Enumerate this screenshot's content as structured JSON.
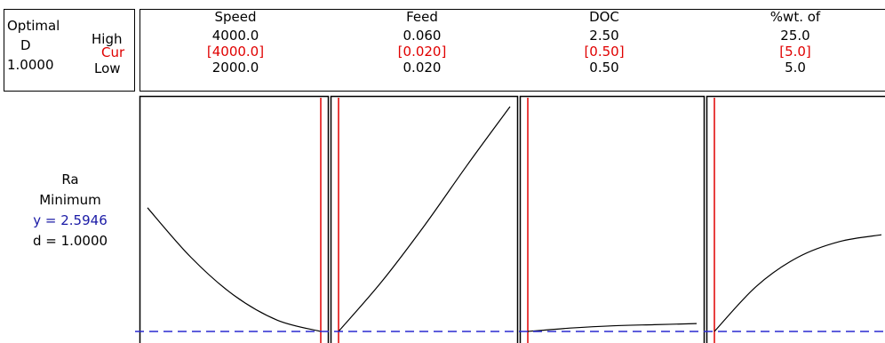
{
  "optimal_panel": {
    "label_optimal": "Optimal",
    "label_d": "D",
    "d_value": "1.0000",
    "label_high": "High",
    "label_cur": "Cur",
    "label_low": "Low"
  },
  "response_panel": {
    "response": "Ra",
    "goal": "Minimum",
    "y_text": "y = 2.5946",
    "d_text": "d = 1.0000"
  },
  "colors": {
    "current_line": "#e00000",
    "reference_line": "#2a2ad0",
    "curve": "#000000"
  },
  "chart_data": {
    "type": "line",
    "y_reference": 2.5946,
    "factors": [
      {
        "name": "Speed",
        "high": "4000.0",
        "cur": "[4000.0]",
        "low": "2000.0",
        "x_range": [
          2000,
          4000
        ],
        "current": 4000,
        "x": [
          2000,
          2500,
          3000,
          3500,
          4000
        ],
        "y": [
          0.55,
          0.33,
          0.16,
          0.05,
          0.0
        ]
      },
      {
        "name": "Feed",
        "high": "0.060",
        "cur": "[0.020]",
        "low": "0.020",
        "x_range": [
          0.02,
          0.06
        ],
        "current": 0.02,
        "x": [
          0.02,
          0.03,
          0.04,
          0.05,
          0.06
        ],
        "y": [
          0.0,
          0.22,
          0.47,
          0.74,
          1.0
        ]
      },
      {
        "name": "DOC",
        "high": "2.50",
        "cur": "[0.50]",
        "low": "0.50",
        "x_range": [
          0.5,
          2.5
        ],
        "current": 0.5,
        "x": [
          0.5,
          1.0,
          1.5,
          2.0,
          2.5
        ],
        "y": [
          0.0,
          0.015,
          0.025,
          0.03,
          0.035
        ]
      },
      {
        "name": "%wt. of",
        "high": "25.0",
        "cur": "[5.0]",
        "low": "5.0",
        "x_range": [
          5,
          25
        ],
        "current": 5,
        "x": [
          5,
          10,
          15,
          20,
          25
        ],
        "y": [
          0.0,
          0.2,
          0.33,
          0.4,
          0.43
        ]
      }
    ]
  }
}
